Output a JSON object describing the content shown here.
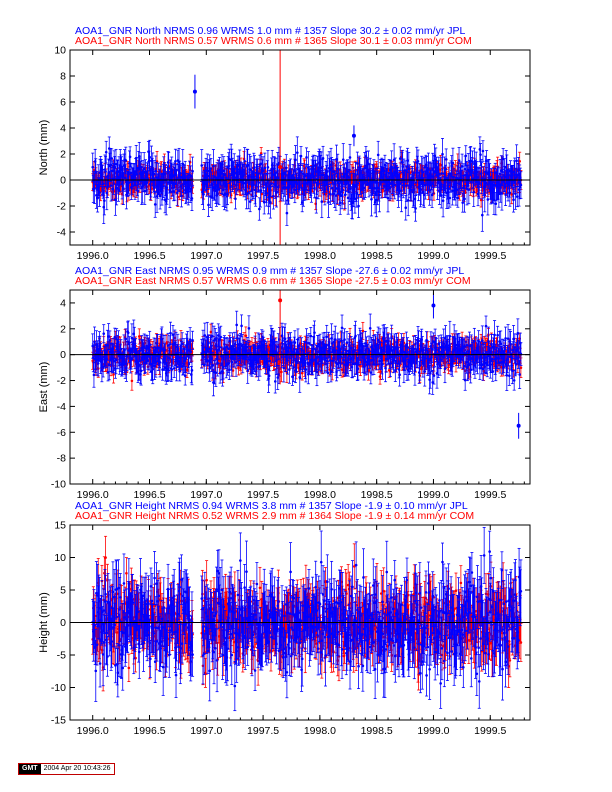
{
  "colors": {
    "series_a": "#0000ff",
    "series_b": "#ff0000",
    "zero_line": "#000000",
    "frame": "#000000"
  },
  "footer": {
    "logo": "GMT",
    "timestamp": "2004 Apr 20 10:43:26"
  },
  "chart_data": [
    {
      "type": "scatter",
      "xlabel": "",
      "ylabel": "North (mm)",
      "xlim": [
        1995.8,
        1999.85
      ],
      "ylim": [
        -5,
        10
      ],
      "x_ticks": [
        1996.0,
        1996.5,
        1997.0,
        1997.5,
        1998.0,
        1998.5,
        1999.0,
        1999.5
      ],
      "x_tick_labels": [
        "1996.0",
        "1996.5",
        "1997.0",
        "1997.5",
        "1998.0",
        "1998.5",
        "1999.0",
        "1999.5"
      ],
      "y_ticks": [
        -4,
        -2,
        0,
        2,
        4,
        6,
        8,
        10
      ],
      "y_tick_labels": [
        "-4",
        "-2",
        "0",
        "2",
        "4",
        "6",
        "8",
        "10"
      ],
      "grid": false,
      "series": [
        {
          "title": "AOA1_GNR North NRMS 0.96 WRMS  1.0 mm # 1357 Slope   30.2 ±  0.02 mm/yr JPL",
          "noise_sigma": 1.0,
          "n_points": 1357,
          "color": "#0000ff"
        },
        {
          "title": "AOA1_GNR North NRMS 0.57 WRMS  0.6 mm # 1365 Slope   30.1 ±  0.03 mm/yr COM",
          "noise_sigma": 0.6,
          "n_points": 1365,
          "color": "#ff0000"
        }
      ],
      "gap": [
        1996.88,
        1996.96
      ],
      "outliers": [
        {
          "x": 1996.9,
          "y": 6.8,
          "err": 1.3
        },
        {
          "x": 1997.65,
          "y": 1.0,
          "err": 10
        },
        {
          "x": 1998.3,
          "y": 3.4,
          "err": 0.8
        }
      ]
    },
    {
      "type": "scatter",
      "xlabel": "",
      "ylabel": "East (mm)",
      "xlim": [
        1995.8,
        1999.85
      ],
      "ylim": [
        -10,
        5
      ],
      "x_ticks": [
        1996.0,
        1996.5,
        1997.0,
        1997.5,
        1998.0,
        1998.5,
        1999.0,
        1999.5
      ],
      "x_tick_labels": [
        "1996.0",
        "1996.5",
        "1997.0",
        "1997.5",
        "1998.0",
        "1998.5",
        "1999.0",
        "1999.5"
      ],
      "y_ticks": [
        -10,
        -8,
        -6,
        -4,
        -2,
        0,
        2,
        4
      ],
      "y_tick_labels": [
        "-10",
        "-8",
        "-6",
        "-4",
        "-2",
        "0",
        "2",
        "4"
      ],
      "grid": false,
      "series": [
        {
          "title": "AOA1_GNR East NRMS 0.95 WRMS  0.9 mm # 1357 Slope  -27.6 ±  0.02 mm/yr JPL",
          "noise_sigma": 0.9,
          "n_points": 1357,
          "color": "#0000ff"
        },
        {
          "title": "AOA1_GNR East NRMS 0.57 WRMS  0.6 mm # 1365 Slope  -27.5 ±  0.03 mm/yr COM",
          "noise_sigma": 0.6,
          "n_points": 1365,
          "color": "#ff0000"
        }
      ],
      "gap": [
        1996.88,
        1996.96
      ],
      "outliers": [
        {
          "x": 1997.65,
          "y": 4.2,
          "err": 6.5
        },
        {
          "x": 1999.75,
          "y": -5.5,
          "err": 1.0
        },
        {
          "x": 1999.0,
          "y": 3.8,
          "err": 1.0
        }
      ]
    },
    {
      "type": "scatter",
      "xlabel": "",
      "ylabel": "Height (mm)",
      "xlim": [
        1995.8,
        1999.85
      ],
      "ylim": [
        -15,
        15
      ],
      "x_ticks": [
        1996.0,
        1996.5,
        1997.0,
        1997.5,
        1998.0,
        1998.5,
        1999.0,
        1999.5
      ],
      "x_tick_labels": [
        "1996.0",
        "1996.5",
        "1997.0",
        "1997.5",
        "1998.0",
        "1998.5",
        "1999.0",
        "1999.5"
      ],
      "y_ticks": [
        -15,
        -10,
        -5,
        0,
        5,
        10,
        15
      ],
      "y_tick_labels": [
        "-15",
        "-10",
        "-5",
        "0",
        "5",
        "10",
        "15"
      ],
      "grid": false,
      "series": [
        {
          "title": "AOA1_GNR Height NRMS 0.94 WRMS  3.8 mm # 1357 Slope   -1.9 ±  0.10 mm/yr JPL",
          "noise_sigma": 3.8,
          "n_points": 1357,
          "color": "#0000ff"
        },
        {
          "title": "AOA1_GNR Height NRMS 0.52 WRMS  2.9 mm # 1364 Slope   -1.9 ±  0.14 mm/yr COM",
          "noise_sigma": 2.9,
          "n_points": 1364,
          "color": "#ff0000"
        }
      ],
      "gap": [
        1996.88,
        1996.96
      ],
      "outliers": []
    }
  ]
}
